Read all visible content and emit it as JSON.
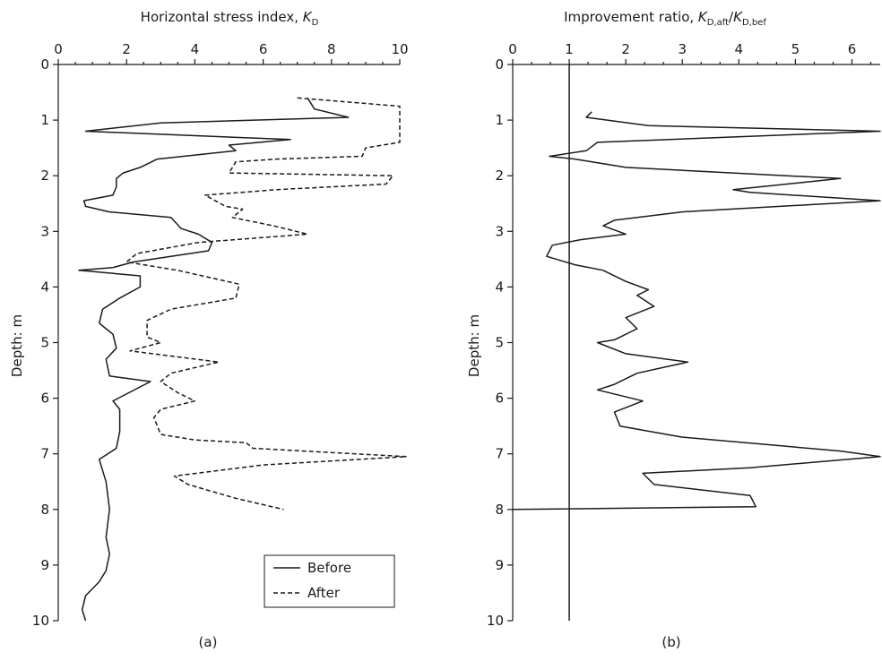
{
  "chart_data": [
    {
      "type": "line",
      "panel_label": "(a)",
      "xlabel": "Horizontal stress index, ",
      "xlabel_italic": "K",
      "xlabel_sub": "D",
      "ylabel": "Depth: m",
      "xlim": [
        0,
        10
      ],
      "ylim": [
        0,
        10
      ],
      "x_ticks": [
        0,
        2,
        4,
        6,
        8,
        10
      ],
      "y_ticks": [
        0,
        1,
        2,
        3,
        4,
        5,
        6,
        7,
        8,
        9,
        10
      ],
      "x_axis_position": "top",
      "y_axis_inverted": true,
      "legend_position": "bottom-right",
      "series": [
        {
          "name": "Before",
          "style": "solid",
          "points": [
            [
              7.3,
              0.6
            ],
            [
              7.5,
              0.8
            ],
            [
              8.5,
              0.95
            ],
            [
              3.0,
              1.05
            ],
            [
              0.8,
              1.2
            ],
            [
              6.8,
              1.35
            ],
            [
              5.0,
              1.45
            ],
            [
              5.2,
              1.55
            ],
            [
              2.9,
              1.7
            ],
            [
              2.4,
              1.85
            ],
            [
              1.9,
              1.95
            ],
            [
              1.7,
              2.05
            ],
            [
              1.7,
              2.2
            ],
            [
              1.6,
              2.35
            ],
            [
              0.75,
              2.45
            ],
            [
              0.8,
              2.55
            ],
            [
              1.5,
              2.65
            ],
            [
              3.3,
              2.75
            ],
            [
              3.6,
              2.95
            ],
            [
              4.1,
              3.05
            ],
            [
              4.5,
              3.2
            ],
            [
              4.4,
              3.35
            ],
            [
              2.2,
              3.55
            ],
            [
              1.6,
              3.65
            ],
            [
              0.6,
              3.7
            ],
            [
              2.4,
              3.8
            ],
            [
              2.4,
              4.0
            ],
            [
              1.8,
              4.2
            ],
            [
              1.3,
              4.4
            ],
            [
              1.2,
              4.65
            ],
            [
              1.4,
              4.75
            ],
            [
              1.6,
              4.85
            ],
            [
              1.7,
              5.1
            ],
            [
              1.4,
              5.3
            ],
            [
              1.5,
              5.6
            ],
            [
              2.7,
              5.7
            ],
            [
              1.6,
              6.05
            ],
            [
              1.8,
              6.2
            ],
            [
              1.8,
              6.6
            ],
            [
              1.7,
              6.9
            ],
            [
              1.2,
              7.1
            ],
            [
              1.4,
              7.5
            ],
            [
              1.5,
              8.0
            ],
            [
              1.4,
              8.5
            ],
            [
              1.5,
              8.8
            ],
            [
              1.4,
              9.1
            ],
            [
              1.2,
              9.3
            ],
            [
              0.8,
              9.55
            ],
            [
              0.7,
              9.8
            ],
            [
              0.8,
              10.0
            ]
          ]
        },
        {
          "name": "After",
          "style": "dashed",
          "points": [
            [
              7.0,
              0.6
            ],
            [
              10.0,
              0.75
            ],
            [
              10.0,
              1.05
            ],
            [
              10.0,
              1.4
            ],
            [
              9.0,
              1.5
            ],
            [
              8.9,
              1.65
            ],
            [
              6.4,
              1.7
            ],
            [
              5.2,
              1.75
            ],
            [
              5.0,
              1.95
            ],
            [
              9.8,
              2.0
            ],
            [
              9.6,
              2.15
            ],
            [
              6.4,
              2.25
            ],
            [
              4.3,
              2.35
            ],
            [
              4.9,
              2.55
            ],
            [
              5.4,
              2.6
            ],
            [
              5.1,
              2.75
            ],
            [
              6.3,
              2.9
            ],
            [
              7.3,
              3.05
            ],
            [
              4.1,
              3.2
            ],
            [
              2.3,
              3.4
            ],
            [
              2.0,
              3.55
            ],
            [
              3.5,
              3.7
            ],
            [
              5.3,
              3.95
            ],
            [
              5.2,
              4.2
            ],
            [
              3.3,
              4.4
            ],
            [
              2.6,
              4.6
            ],
            [
              2.6,
              4.9
            ],
            [
              3.0,
              5.0
            ],
            [
              2.1,
              5.15
            ],
            [
              3.4,
              5.25
            ],
            [
              4.7,
              5.35
            ],
            [
              3.3,
              5.55
            ],
            [
              3.0,
              5.7
            ],
            [
              3.5,
              5.9
            ],
            [
              4.0,
              6.05
            ],
            [
              3.0,
              6.2
            ],
            [
              2.8,
              6.35
            ],
            [
              3.0,
              6.65
            ],
            [
              4.0,
              6.75
            ],
            [
              5.5,
              6.8
            ],
            [
              5.7,
              6.9
            ],
            [
              10.2,
              7.05
            ],
            [
              6.0,
              7.2
            ],
            [
              3.4,
              7.4
            ],
            [
              3.8,
              7.55
            ],
            [
              5.2,
              7.8
            ],
            [
              6.6,
              8.0
            ]
          ]
        }
      ]
    },
    {
      "type": "line",
      "panel_label": "(b)",
      "xlabel": "Improvement ratio, ",
      "xlabel_parts": {
        "k1": "K",
        "s1": "D,aft",
        "slash": "/",
        "k2": "K",
        "s2": "D,bef"
      },
      "ylabel": "Depth: m",
      "xlim": [
        0,
        6.5
      ],
      "ylim": [
        0,
        10
      ],
      "x_ticks": [
        0,
        1,
        2,
        3,
        4,
        5,
        6
      ],
      "y_ticks": [
        0,
        1,
        2,
        3,
        4,
        5,
        6,
        7,
        8,
        9,
        10
      ],
      "x_axis_position": "top",
      "y_axis_inverted": true,
      "reference_line_x": 1,
      "series": [
        {
          "name": "",
          "style": "solid",
          "points": [
            [
              1.4,
              0.85
            ],
            [
              1.3,
              0.95
            ],
            [
              2.4,
              1.1
            ],
            [
              6.5,
              1.2
            ],
            [
              1.5,
              1.4
            ],
            [
              1.3,
              1.55
            ],
            [
              0.65,
              1.65
            ],
            [
              1.1,
              1.7
            ],
            [
              2.0,
              1.85
            ],
            [
              5.8,
              2.05
            ],
            [
              3.9,
              2.25
            ],
            [
              4.2,
              2.3
            ],
            [
              6.5,
              2.45
            ],
            [
              3.0,
              2.65
            ],
            [
              1.8,
              2.8
            ],
            [
              1.6,
              2.9
            ],
            [
              2.0,
              3.05
            ],
            [
              1.2,
              3.15
            ],
            [
              0.7,
              3.25
            ],
            [
              0.6,
              3.45
            ],
            [
              1.1,
              3.6
            ],
            [
              1.6,
              3.7
            ],
            [
              2.0,
              3.9
            ],
            [
              2.4,
              4.05
            ],
            [
              2.2,
              4.15
            ],
            [
              2.5,
              4.35
            ],
            [
              2.0,
              4.55
            ],
            [
              2.2,
              4.75
            ],
            [
              1.8,
              4.95
            ],
            [
              1.5,
              5.0
            ],
            [
              2.0,
              5.2
            ],
            [
              3.1,
              5.35
            ],
            [
              2.2,
              5.55
            ],
            [
              1.8,
              5.75
            ],
            [
              1.5,
              5.85
            ],
            [
              2.3,
              6.05
            ],
            [
              1.8,
              6.25
            ],
            [
              1.9,
              6.5
            ],
            [
              3.0,
              6.7
            ],
            [
              5.8,
              6.95
            ],
            [
              6.5,
              7.05
            ],
            [
              4.2,
              7.25
            ],
            [
              2.3,
              7.35
            ],
            [
              2.5,
              7.55
            ],
            [
              4.2,
              7.75
            ],
            [
              4.3,
              7.95
            ],
            [
              0.0,
              8.0
            ]
          ]
        }
      ]
    }
  ],
  "legend": {
    "items": [
      {
        "label": "Before",
        "style": "solid"
      },
      {
        "label": "After",
        "style": "dashed"
      }
    ]
  }
}
